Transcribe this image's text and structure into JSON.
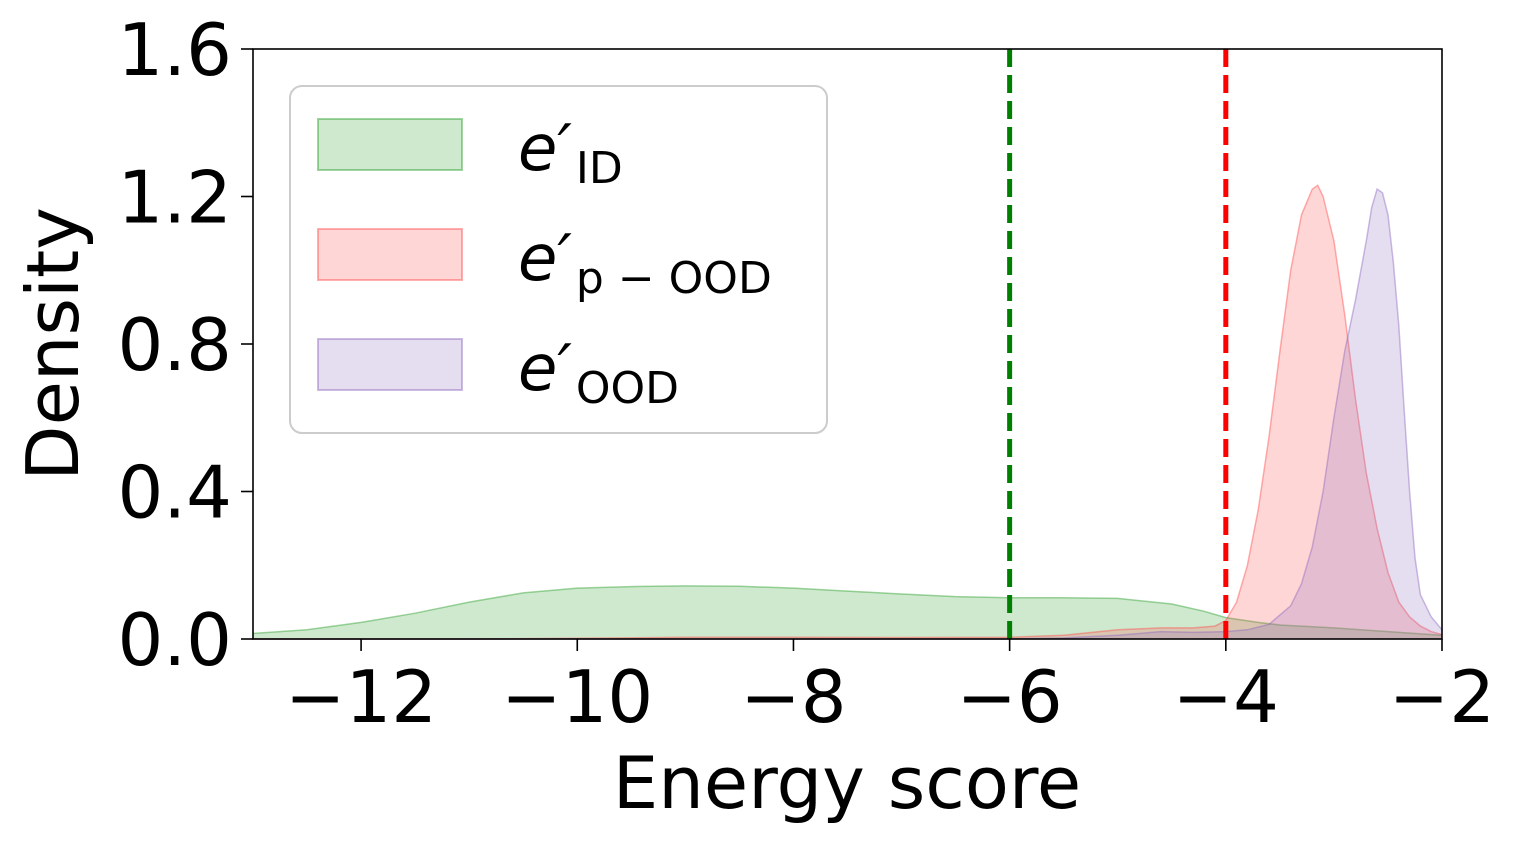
{
  "chart_data": {
    "type": "area",
    "xlabel": "Energy score",
    "ylabel": "Density",
    "xlim": [
      -13,
      -2
    ],
    "ylim": [
      0,
      1.6
    ],
    "x_ticks": [
      -12,
      -10,
      -8,
      -6,
      -4,
      -2
    ],
    "x_tick_labels": [
      "−12",
      "−10",
      "−8",
      "−6",
      "−4",
      "−2"
    ],
    "y_ticks": [
      0.0,
      0.4,
      0.8,
      1.2,
      1.6
    ],
    "y_tick_labels": [
      "0.0",
      "0.4",
      "0.8",
      "1.2",
      "1.6"
    ],
    "grid": false,
    "legend_position": "top-left",
    "series": [
      {
        "key": "id",
        "name": "e′ID",
        "legend_main": "e′",
        "legend_sub": "ID",
        "color": "#2ca02c",
        "points": [
          [
            -13,
            0.015
          ],
          [
            -12.5,
            0.025
          ],
          [
            -12,
            0.045
          ],
          [
            -11.5,
            0.07
          ],
          [
            -11,
            0.1
          ],
          [
            -10.5,
            0.125
          ],
          [
            -10,
            0.138
          ],
          [
            -9.5,
            0.142
          ],
          [
            -9,
            0.144
          ],
          [
            -8.5,
            0.143
          ],
          [
            -8,
            0.138
          ],
          [
            -7.5,
            0.13
          ],
          [
            -7,
            0.122
          ],
          [
            -6.5,
            0.115
          ],
          [
            -6,
            0.112
          ],
          [
            -5.5,
            0.112
          ],
          [
            -5,
            0.11
          ],
          [
            -4.5,
            0.095
          ],
          [
            -4.2,
            0.075
          ],
          [
            -4,
            0.058
          ],
          [
            -3.7,
            0.045
          ],
          [
            -3.5,
            0.038
          ],
          [
            -3,
            0.03
          ],
          [
            -2.5,
            0.02
          ],
          [
            -2,
            0.01
          ]
        ]
      },
      {
        "key": "pood",
        "name": "e′p−OOD",
        "legend_main": "e′",
        "legend_sub": "p − OOD",
        "color": "#ff4d4d",
        "points": [
          [
            -13,
            0
          ],
          [
            -11,
            0
          ],
          [
            -10,
            0.002
          ],
          [
            -9,
            0.005
          ],
          [
            -8,
            0.005
          ],
          [
            -7,
            0.004
          ],
          [
            -6,
            0.005
          ],
          [
            -5.5,
            0.01
          ],
          [
            -5,
            0.025
          ],
          [
            -4.6,
            0.03
          ],
          [
            -4.3,
            0.03
          ],
          [
            -4.1,
            0.035
          ],
          [
            -4,
            0.05
          ],
          [
            -3.9,
            0.1
          ],
          [
            -3.8,
            0.2
          ],
          [
            -3.7,
            0.35
          ],
          [
            -3.6,
            0.55
          ],
          [
            -3.5,
            0.78
          ],
          [
            -3.4,
            1.0
          ],
          [
            -3.3,
            1.15
          ],
          [
            -3.2,
            1.22
          ],
          [
            -3.15,
            1.23
          ],
          [
            -3.1,
            1.2
          ],
          [
            -3.0,
            1.08
          ],
          [
            -2.9,
            0.88
          ],
          [
            -2.8,
            0.65
          ],
          [
            -2.7,
            0.45
          ],
          [
            -2.6,
            0.3
          ],
          [
            -2.5,
            0.18
          ],
          [
            -2.4,
            0.1
          ],
          [
            -2.3,
            0.06
          ],
          [
            -2.2,
            0.035
          ],
          [
            -2.1,
            0.02
          ],
          [
            -2,
            0.012
          ]
        ]
      },
      {
        "key": "ood",
        "name": "e′OOD",
        "legend_main": "e′",
        "legend_sub": "OOD",
        "color": "#8e6bbf",
        "points": [
          [
            -13,
            0
          ],
          [
            -6,
            0
          ],
          [
            -5.5,
            0.003
          ],
          [
            -5,
            0.01
          ],
          [
            -4.8,
            0.015
          ],
          [
            -4.6,
            0.02
          ],
          [
            -4.3,
            0.018
          ],
          [
            -4,
            0.02
          ],
          [
            -3.8,
            0.025
          ],
          [
            -3.6,
            0.04
          ],
          [
            -3.4,
            0.09
          ],
          [
            -3.3,
            0.15
          ],
          [
            -3.2,
            0.25
          ],
          [
            -3.1,
            0.4
          ],
          [
            -3.0,
            0.6
          ],
          [
            -2.9,
            0.78
          ],
          [
            -2.8,
            0.92
          ],
          [
            -2.7,
            1.08
          ],
          [
            -2.65,
            1.17
          ],
          [
            -2.6,
            1.22
          ],
          [
            -2.55,
            1.21
          ],
          [
            -2.5,
            1.15
          ],
          [
            -2.45,
            1.02
          ],
          [
            -2.4,
            0.85
          ],
          [
            -2.35,
            0.62
          ],
          [
            -2.3,
            0.4
          ],
          [
            -2.25,
            0.22
          ],
          [
            -2.2,
            0.12
          ],
          [
            -2.1,
            0.06
          ],
          [
            -2,
            0.025
          ]
        ]
      }
    ],
    "vlines": [
      {
        "x": -6,
        "color": "#008000"
      },
      {
        "x": -4,
        "color": "#ff0000"
      }
    ]
  }
}
